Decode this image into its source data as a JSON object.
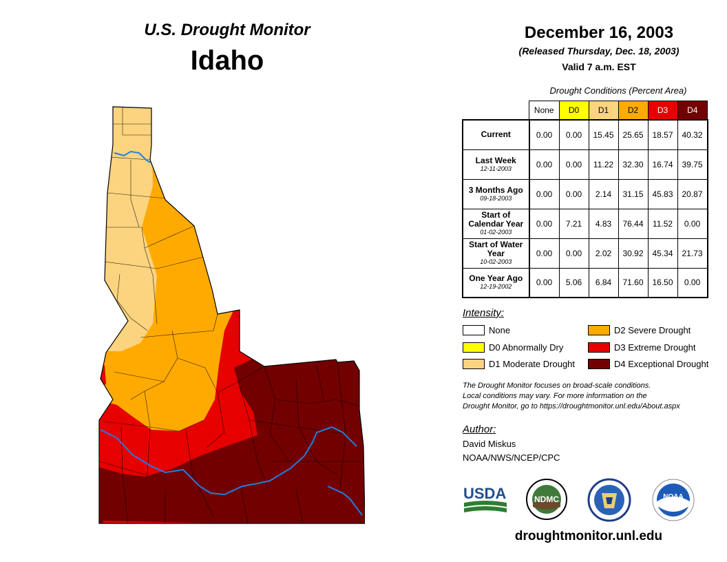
{
  "header": {
    "title": "U.S. Drought Monitor",
    "state": "Idaho"
  },
  "date": {
    "title": "December 16, 2003",
    "released": "(Released Thursday, Dec. 18, 2003)",
    "valid": "Valid 7 a.m. EST"
  },
  "conditions": {
    "caption": "Drought Conditions (Percent Area)",
    "columns": [
      "None",
      "D0",
      "D1",
      "D2",
      "D3",
      "D4"
    ],
    "column_colors": [
      "#ffffff",
      "#ffff00",
      "#fcd37f",
      "#ffaa00",
      "#e60000",
      "#730000"
    ],
    "rows": [
      {
        "label": "Current",
        "date": "",
        "values": [
          "0.00",
          "0.00",
          "15.45",
          "25.65",
          "18.57",
          "40.32"
        ]
      },
      {
        "label": "Last Week",
        "date": "12-11-2003",
        "values": [
          "0.00",
          "0.00",
          "11.22",
          "32.30",
          "16.74",
          "39.75"
        ]
      },
      {
        "label": "3 Months Ago",
        "date": "09-18-2003",
        "values": [
          "0.00",
          "0.00",
          "2.14",
          "31.15",
          "45.83",
          "20.87"
        ]
      },
      {
        "label": "Start of Calendar Year",
        "date": "01-02-2003",
        "values": [
          "0.00",
          "7.21",
          "4.83",
          "76.44",
          "11.52",
          "0.00"
        ]
      },
      {
        "label": "Start of Water Year",
        "date": "10-02-2003",
        "values": [
          "0.00",
          "0.00",
          "2.02",
          "30.92",
          "45.34",
          "21.73"
        ]
      },
      {
        "label": "One Year Ago",
        "date": "12-19-2002",
        "values": [
          "0.00",
          "5.06",
          "6.84",
          "71.60",
          "16.50",
          "0.00"
        ]
      }
    ]
  },
  "legend": {
    "title": "Intensity:",
    "items": [
      {
        "label": "None",
        "color": "#ffffff"
      },
      {
        "label": "D0 Abnormally Dry",
        "color": "#ffff00"
      },
      {
        "label": "D1 Moderate Drought",
        "color": "#fcd37f"
      },
      {
        "label": "D2 Severe Drought",
        "color": "#ffaa00"
      },
      {
        "label": "D3 Extreme Drought",
        "color": "#e60000"
      },
      {
        "label": "D4 Exceptional Drought",
        "color": "#730000"
      }
    ]
  },
  "note": {
    "line1": "The Drought Monitor focuses on broad-scale conditions.",
    "line2": "Local conditions may vary. For more information on the",
    "line3": "Drought Monitor, go to https://droughtmonitor.unl.edu/About.aspx"
  },
  "author": {
    "title": "Author:",
    "name": "David Miskus",
    "org": "NOAA/NWS/NCEP/CPC"
  },
  "logos": {
    "usda": "USDA",
    "ndmc": "NDMC",
    "noaa": "NOAA"
  },
  "footer": {
    "url": "droughtmonitor.unl.edu"
  },
  "map": {
    "river_color": "#1e7fe0"
  }
}
